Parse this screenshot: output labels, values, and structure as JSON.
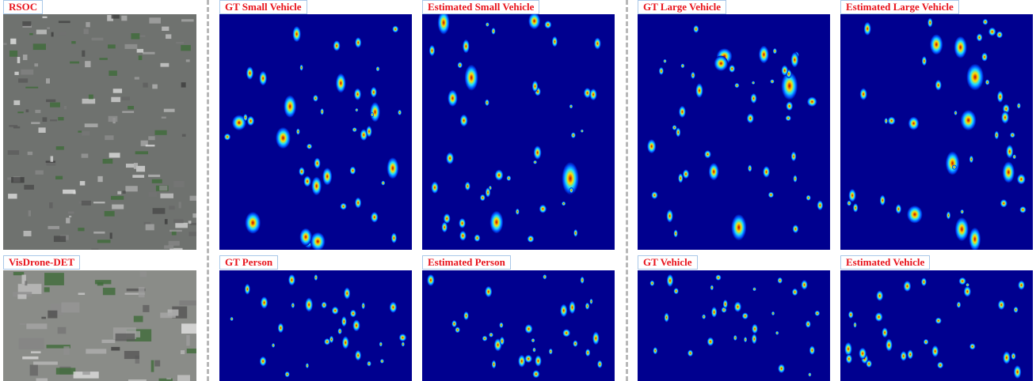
{
  "figure": {
    "datasets": [
      {
        "name": "RSOC",
        "panels": [
          "GT Small Vehicle",
          "Estimated Small Vehicle",
          "GT Large Vehicle",
          "Estimated Large Vehicle"
        ]
      },
      {
        "name": "VisDrone-DET",
        "panels": [
          "GT Person",
          "Estimated Person",
          "GT Vehicle",
          "Estimated Vehicle"
        ]
      }
    ]
  }
}
